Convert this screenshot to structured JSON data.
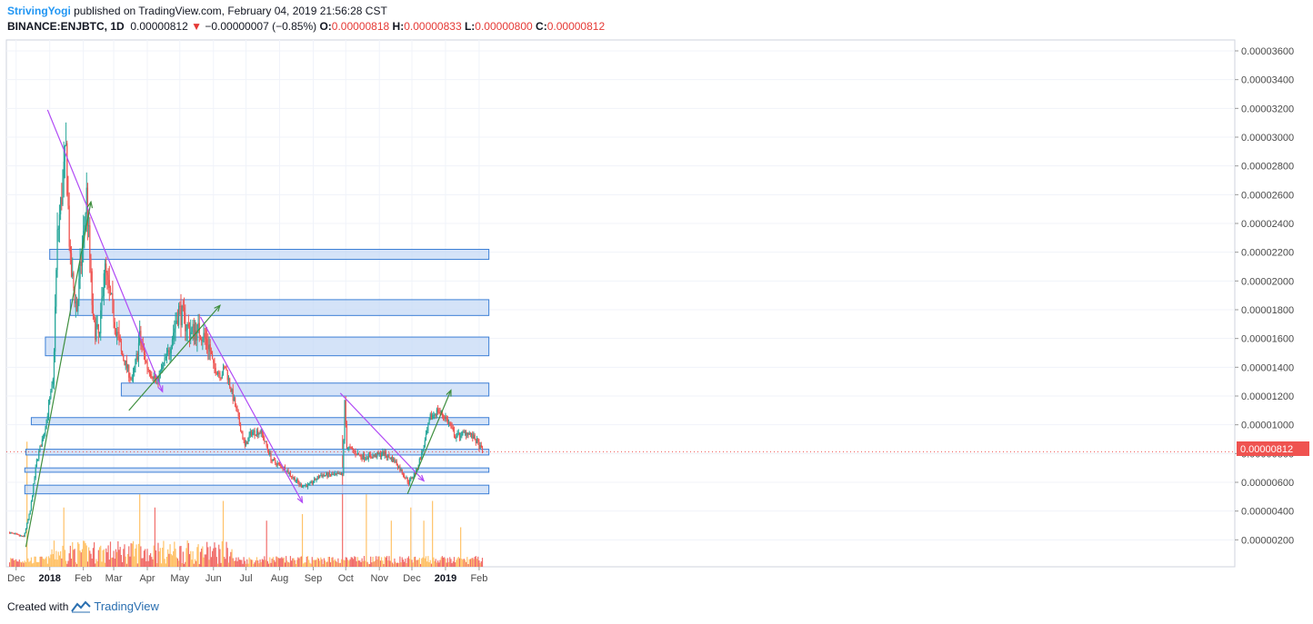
{
  "header": {
    "author": "StrivingYogi",
    "published_text": "published on TradingView.com, February 04, 2019 21:56:28 CST",
    "symbol": "BINANCE:ENJBTC, 1D",
    "last": "0.00000812",
    "change_arrow": "▼",
    "change": "−0.00000007 (−0.85%)",
    "o_label": "O:",
    "o_value": "0.00000818",
    "h_label": "H:",
    "h_value": "0.00000833",
    "l_label": "L:",
    "l_value": "0.00000800",
    "c_label": "C:",
    "c_value": "0.00000812"
  },
  "footer": {
    "created_with": "Created with",
    "brand": "TradingView",
    "logo_icon": "tradingview-logo-icon"
  },
  "colors": {
    "up": "#26a69a",
    "down": "#ef5350",
    "vol_up": "#ffb74d",
    "vol_down": "#ef5350",
    "zone_fill": "#c5d9f5",
    "zone_stroke": "#3c7fd6",
    "trend_down": "#b14bf5",
    "trend_up": "#3f8f3f",
    "price_tag": "#ef5350"
  },
  "chart_data": {
    "type": "candlestick",
    "y_axis": {
      "min": 0,
      "max": 3.6e-05,
      "ticks": [
        "0.00000200",
        "0.00000400",
        "0.00000600",
        "0.00000800",
        "0.00001000",
        "0.00001200",
        "0.00001400",
        "0.00001600",
        "0.00001800",
        "0.00002000",
        "0.00002200",
        "0.00002400",
        "0.00002600",
        "0.00002800",
        "0.00003000",
        "0.00003200",
        "0.00003400",
        "0.00003600"
      ],
      "last_price_label": "0.00000812"
    },
    "x_axis": {
      "labels": [
        {
          "text": "Dec",
          "date": "2017-12-01"
        },
        {
          "text": "2018",
          "date": "2018-01-01",
          "year": true
        },
        {
          "text": "Feb",
          "date": "2018-02-01"
        },
        {
          "text": "Mar",
          "date": "2018-03-01"
        },
        {
          "text": "Apr",
          "date": "2018-04-01"
        },
        {
          "text": "May",
          "date": "2018-05-01"
        },
        {
          "text": "Jun",
          "date": "2018-06-01"
        },
        {
          "text": "Jul",
          "date": "2018-07-01"
        },
        {
          "text": "Aug",
          "date": "2018-08-01"
        },
        {
          "text": "Sep",
          "date": "2018-09-01"
        },
        {
          "text": "Oct",
          "date": "2018-10-01"
        },
        {
          "text": "Nov",
          "date": "2018-11-01"
        },
        {
          "text": "Dec",
          "date": "2018-12-01"
        },
        {
          "text": "2019",
          "date": "2019-01-01",
          "year": true
        },
        {
          "text": "Feb",
          "date": "2019-02-01"
        }
      ]
    },
    "series_anchors": [
      [
        "2017-11-25",
        2.5e-06
      ],
      [
        "2017-12-08",
        2.2e-06
      ],
      [
        "2017-12-14",
        4e-06
      ],
      [
        "2017-12-20",
        7.5e-06
      ],
      [
        "2017-12-27",
        9.5e-06
      ],
      [
        "2018-01-04",
        1.3e-05
      ],
      [
        "2018-01-08",
        2.3e-05
      ],
      [
        "2018-01-12",
        2.6e-05
      ],
      [
        "2018-01-16",
        2.9e-05
      ],
      [
        "2018-01-20",
        2.1e-05
      ],
      [
        "2018-01-26",
        1.8e-05
      ],
      [
        "2018-02-01",
        2.3e-05
      ],
      [
        "2018-02-04",
        2.6e-05
      ],
      [
        "2018-02-10",
        1.7e-05
      ],
      [
        "2018-02-16",
        1.6e-05
      ],
      [
        "2018-02-20",
        2.1e-05
      ],
      [
        "2018-02-28",
        1.8e-05
      ],
      [
        "2018-03-08",
        1.5e-05
      ],
      [
        "2018-03-18",
        1.3e-05
      ],
      [
        "2018-03-25",
        1.6e-05
      ],
      [
        "2018-04-01",
        1.4e-05
      ],
      [
        "2018-04-10",
        1.3e-05
      ],
      [
        "2018-04-20",
        1.5e-05
      ],
      [
        "2018-04-30",
        1.8e-05
      ],
      [
        "2018-05-10",
        1.65e-05
      ],
      [
        "2018-05-20",
        1.65e-05
      ],
      [
        "2018-05-28",
        1.55e-05
      ],
      [
        "2018-06-01",
        1.4e-05
      ],
      [
        "2018-06-08",
        1.35e-05
      ],
      [
        "2018-06-12",
        1.4e-05
      ],
      [
        "2018-06-22",
        1.1e-05
      ],
      [
        "2018-06-30",
        8.5e-06
      ],
      [
        "2018-07-06",
        9.5e-06
      ],
      [
        "2018-07-15",
        9.5e-06
      ],
      [
        "2018-07-25",
        7.5e-06
      ],
      [
        "2018-08-05",
        7e-06
      ],
      [
        "2018-08-20",
        5.8e-06
      ],
      [
        "2018-08-28",
        5.8e-06
      ],
      [
        "2018-09-08",
        6.5e-06
      ],
      [
        "2018-09-28",
        6.5e-06
      ],
      [
        "2018-09-30",
        1.15e-05
      ],
      [
        "2018-10-02",
        8.5e-06
      ],
      [
        "2018-10-15",
        7.8e-06
      ],
      [
        "2018-10-25",
        7.8e-06
      ],
      [
        "2018-11-05",
        8e-06
      ],
      [
        "2018-11-15",
        7.5e-06
      ],
      [
        "2018-11-28",
        6e-06
      ],
      [
        "2018-12-05",
        6.8e-06
      ],
      [
        "2018-12-12",
        8.5e-06
      ],
      [
        "2018-12-18",
        1.05e-05
      ],
      [
        "2018-12-25",
        1.1e-05
      ],
      [
        "2019-01-01",
        1.05e-05
      ],
      [
        "2019-01-10",
        9.2e-06
      ],
      [
        "2019-01-22",
        9.5e-06
      ],
      [
        "2019-01-30",
        8.8e-06
      ],
      [
        "2019-02-04",
        8.12e-06
      ]
    ],
    "zones": [
      {
        "from": "2018-01-01",
        "to": "2019-02-10",
        "top": 2.22e-05,
        "bottom": 2.15e-05
      },
      {
        "from": "2018-01-20",
        "to": "2019-02-10",
        "top": 1.87e-05,
        "bottom": 1.76e-05
      },
      {
        "from": "2017-12-28",
        "to": "2019-02-10",
        "top": 1.61e-05,
        "bottom": 1.48e-05
      },
      {
        "from": "2018-03-08",
        "to": "2019-02-10",
        "top": 1.29e-05,
        "bottom": 1.2e-05
      },
      {
        "from": "2017-12-15",
        "to": "2019-02-10",
        "top": 1.05e-05,
        "bottom": 1e-05
      },
      {
        "from": "2017-12-10",
        "to": "2019-02-10",
        "top": 8.3e-06,
        "bottom": 7.9e-06
      },
      {
        "from": "2017-12-09",
        "to": "2019-02-10",
        "top": 7e-06,
        "bottom": 6.7e-06
      },
      {
        "from": "2017-12-09",
        "to": "2019-02-10",
        "top": 5.8e-06,
        "bottom": 5.2e-06
      }
    ],
    "trendlines": [
      {
        "kind": "down",
        "from": [
          "2017-12-30",
          3.19e-05
        ],
        "to": [
          "2018-04-15",
          1.23e-05
        ]
      },
      {
        "kind": "down",
        "from": [
          "2018-05-20",
          1.75e-05
        ],
        "to": [
          "2018-08-22",
          4.6e-06
        ]
      },
      {
        "kind": "down",
        "from": [
          "2018-09-26",
          1.22e-05
        ],
        "to": [
          "2018-12-12",
          6.1e-06
        ]
      },
      {
        "kind": "up",
        "from": [
          "2017-12-10",
          1.5e-06
        ],
        "to": [
          "2018-02-08",
          2.55e-05
        ]
      },
      {
        "kind": "up",
        "from": [
          "2018-03-15",
          1.1e-05
        ],
        "to": [
          "2018-06-07",
          1.83e-05
        ]
      },
      {
        "kind": "up",
        "from": [
          "2018-11-27",
          5.2e-06
        ],
        "to": [
          "2019-01-06",
          1.24e-05
        ]
      }
    ],
    "volume_spikes": [
      [
        "2017-12-11",
        0.95
      ],
      [
        "2018-01-14",
        0.45
      ],
      [
        "2018-03-25",
        0.55
      ],
      [
        "2018-04-08",
        0.45
      ],
      [
        "2018-06-10",
        0.5
      ],
      [
        "2018-07-20",
        0.35
      ],
      [
        "2018-08-22",
        0.4
      ],
      [
        "2018-09-28",
        1.0
      ],
      [
        "2018-10-20",
        0.55
      ],
      [
        "2018-11-12",
        0.35
      ],
      [
        "2018-11-30",
        0.45
      ],
      [
        "2018-12-12",
        0.35
      ],
      [
        "2018-12-20",
        0.5
      ],
      [
        "2019-01-15",
        0.3
      ]
    ]
  }
}
